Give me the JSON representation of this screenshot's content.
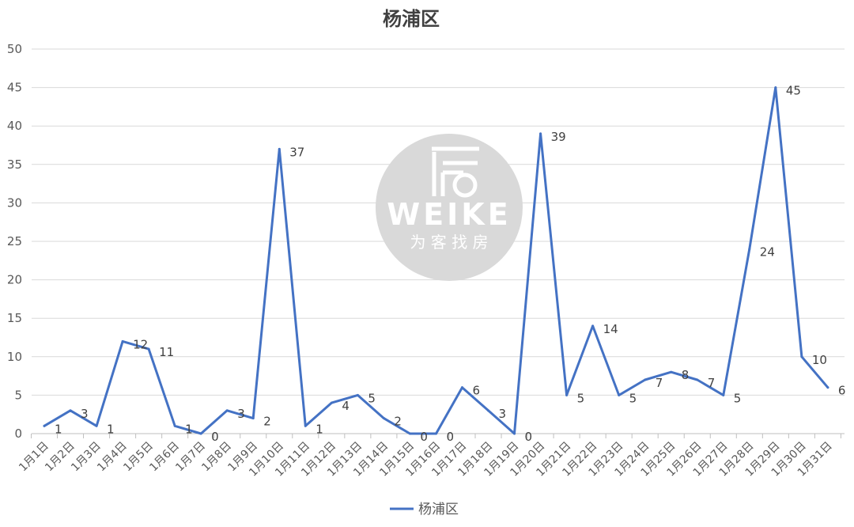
{
  "chart_data": {
    "type": "line",
    "title": "杨浦区",
    "xlabel": "",
    "ylabel": "",
    "ylim": [
      0,
      50
    ],
    "y_ticks": [
      0,
      5,
      10,
      15,
      20,
      25,
      30,
      35,
      40,
      45,
      50
    ],
    "grid": true,
    "legend_position": "bottom",
    "categories": [
      "1月1日",
      "1月2日",
      "1月3日",
      "1月4日",
      "1月5日",
      "1月6日",
      "1月7日",
      "1月8日",
      "1月9日",
      "1月10日",
      "1月11日",
      "1月12日",
      "1月13日",
      "1月14日",
      "1月15日",
      "1月16日",
      "1月17日",
      "1月18日",
      "1月19日",
      "1月20日",
      "1月21日",
      "1月22日",
      "1月23日",
      "1月24日",
      "1月25日",
      "1月26日",
      "1月27日",
      "1月28日",
      "1月29日",
      "1月30日",
      "1月31日"
    ],
    "series": [
      {
        "name": "杨浦区",
        "color": "#4472c4",
        "values": [
          1,
          3,
          1,
          12,
          11,
          1,
          0,
          3,
          2,
          37,
          1,
          4,
          5,
          2,
          0,
          0,
          6,
          3,
          0,
          39,
          5,
          14,
          5,
          7,
          8,
          7,
          5,
          24,
          45,
          10,
          6
        ]
      }
    ]
  },
  "watermark": {
    "brand": "WEIKE",
    "tagline": "为 客 找 房",
    "background_color": "#d9d9d9"
  }
}
